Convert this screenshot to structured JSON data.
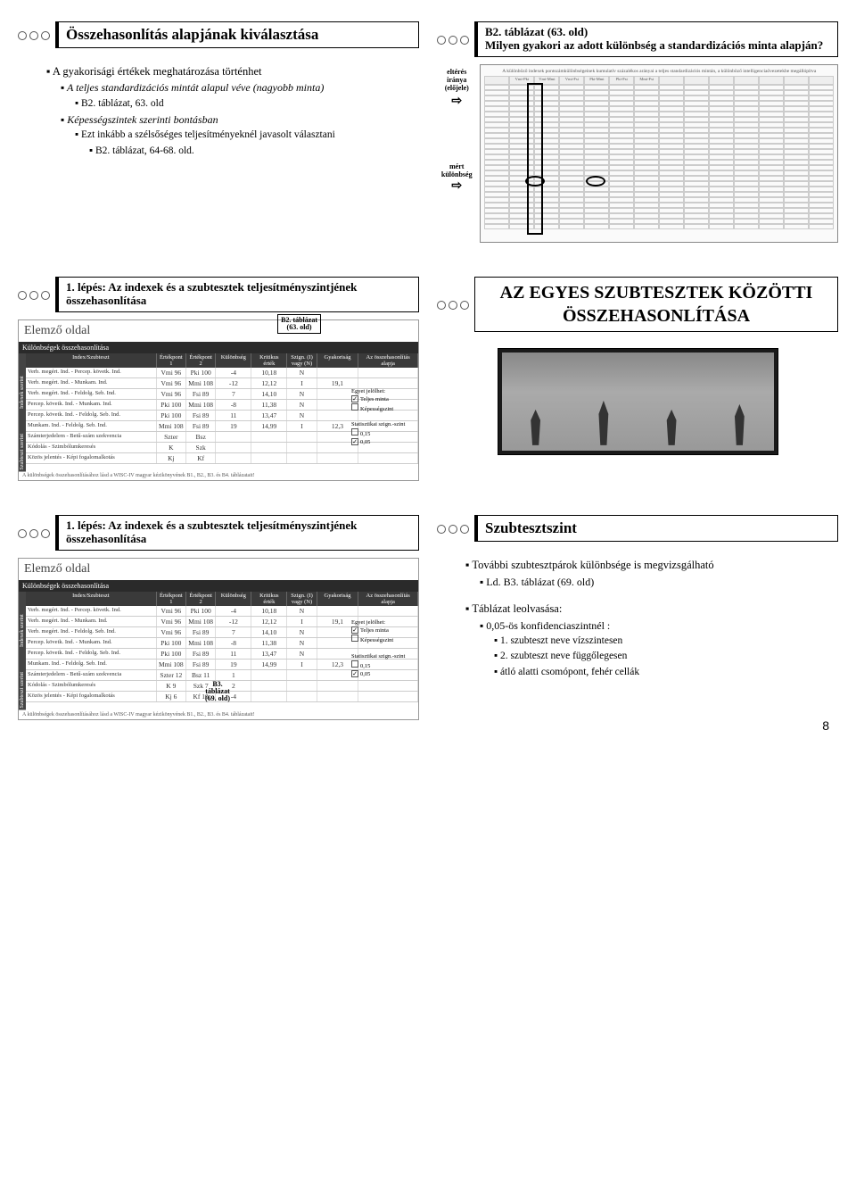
{
  "page_number": "8",
  "slide1": {
    "title": "Összehasonlítás alapjának kiválasztása",
    "b1a": "A gyakorisági értékek meghatározása történhet",
    "b2a": "A teljes standardizációs mintát alapul véve (nagyobb minta)",
    "b3a": "B2. táblázat, 63. old",
    "b2b": "Képességszintek szerinti bontásban",
    "b3b": "Ezt inkább a szélsőséges teljesítményeknél javasolt választani",
    "b3c": "B2. táblázat, 64-68. old."
  },
  "slide2": {
    "title": "B2. táblázat (63. old)\nMilyen gyakori az adott különbség a standardizációs minta alapján?",
    "label_elteres": "eltérés\niránya\n(előjele)",
    "label_mert": "mért\nkülönbség",
    "matrix_caption": "A különböző indexek pontszámkülönbségeinek kumulatív százalékos arányai a teljes standardizációs mintán,\na különböző intelligenciaövezetekbe megállópítva",
    "col_headers": [
      "Vmi-Pki",
      "Vmi-Mmi",
      "Vmi-Fsi",
      "Pki-Mmi",
      "Pki-Fsi",
      "Mmi-Fsi"
    ]
  },
  "slide3": {
    "title": "1. lépés: Az indexek és a szubtesztek teljesítményszintjének összehasonlítása",
    "note": "B2. táblázat\n(63. old)",
    "form_title": "Elemző oldal",
    "form_bar": "Különbségek összehasonlítása",
    "hdr": [
      "Index/Szubteszt",
      "Értékpont 1",
      "Értékpont 2",
      "Különbség",
      "Kritikus érték",
      "Szign. (I) vagy (N)",
      "Gyakoriság",
      "Az összehasonlítás alapja"
    ],
    "rows": [
      [
        "Verb. megért. Ind. - Percep. követk. Ind.",
        "Vmi 96",
        "Pki 100",
        "-4",
        "10,18",
        "N",
        "",
        ""
      ],
      [
        "Verb. megért. Ind. - Munkam. Ind.",
        "Vmi 96",
        "Mmi 108",
        "-12",
        "12,12",
        "I",
        "19,1",
        ""
      ],
      [
        "Verb. megért. Ind. - Feldolg. Seb. Ind.",
        "Vmi 96",
        "Fsi 89",
        "7",
        "14,10",
        "N",
        "",
        ""
      ],
      [
        "Percep. követk. Ind. - Munkam. Ind.",
        "Pki 100",
        "Mmi 108",
        "-8",
        "11,38",
        "N",
        "",
        ""
      ],
      [
        "Percep. követk. Ind. - Feldolg. Seb. Ind.",
        "Pki 100",
        "Fsi 89",
        "11",
        "13,47",
        "N",
        "",
        ""
      ],
      [
        "Munkam. Ind. - Feldolg. Seb. Ind.",
        "Mmi 108",
        "Fsi 89",
        "19",
        "14,99",
        "I",
        "12,3",
        ""
      ]
    ],
    "rows2": [
      [
        "Számterjedelem - Betű-szám szekvencia",
        "Szter",
        "Bsz",
        "",
        "",
        "",
        "",
        ""
      ],
      [
        "Kódolás - Szimbólumkeresés",
        "K",
        "Szk",
        "",
        "",
        "",
        "",
        ""
      ],
      [
        "Közös jelentés - Képi fogalomalkotás",
        "Kj",
        "Kf",
        "",
        "",
        "",
        "",
        ""
      ]
    ],
    "footer": "A különbségek összehasonlításához lásd a WISC-IV magyar kézikönyvének B1., B2., B3. és B4. táblázatait!",
    "right_labels": [
      "Egyet jelölhet:",
      "Teljes minta",
      "Képességszint",
      "Statisztikai szign.-szint",
      "0,15",
      "0,05"
    ]
  },
  "slide4": {
    "title": "AZ EGYES SZUBTESZTEK KÖZÖTTI ÖSSZEHASONLÍTÁSA"
  },
  "slide5": {
    "title": "1. lépés: Az indexek és a szubtesztek teljesítményszintjének összehasonlítása",
    "note": "B3.\ntáblázat\n(69. old)",
    "rows2": [
      [
        "Számterjedelem - Betű-szám szekvencia",
        "Szter 12",
        "Bsz 11",
        "1",
        "",
        "",
        "",
        ""
      ],
      [
        "Kódolás - Szimbólumkeresés",
        "K 9",
        "Szk 7",
        "2",
        "",
        "",
        "",
        ""
      ],
      [
        "Közös jelentés - Képi fogalomalkotás",
        "Kj 6",
        "Kf 10",
        "-4",
        "",
        "",
        "",
        ""
      ]
    ]
  },
  "slide6": {
    "title": "Szubtesztszint",
    "b1a": "További szubtesztpárok különbsége is megvizsgálható",
    "b2a": "Ld. B3. táblázat (69. old)",
    "b1b": "Táblázat leolvasása:",
    "b2b": "0,05-ös konfidenciaszintnél :",
    "b3a": "1. szubteszt neve vízszintesen",
    "b3b": "2. szubteszt neve függőlegesen",
    "b3c": "átló alatti csomópont, fehér cellák"
  }
}
